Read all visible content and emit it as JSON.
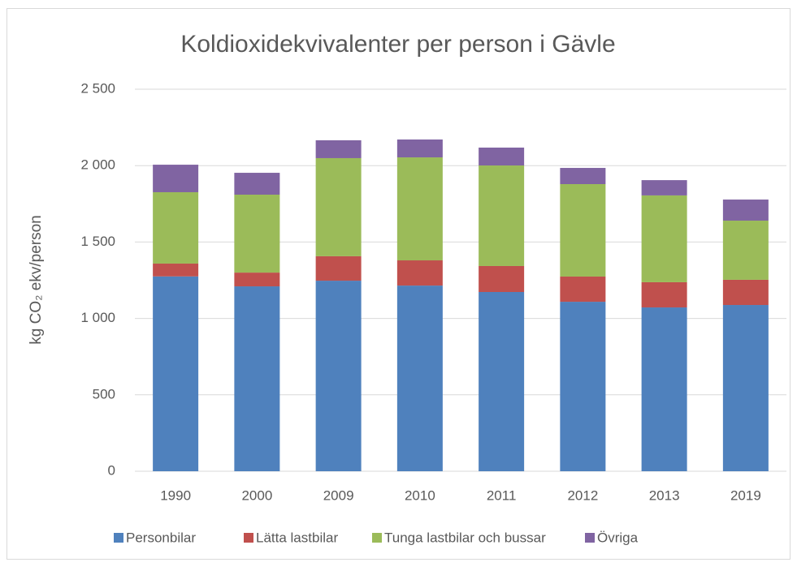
{
  "chart_data": {
    "type": "stacked_bar",
    "title": "Koldioxidekvivalenter per person i Gävle",
    "y_label": "kg CO₂ ekv/person",
    "categories": [
      "1990",
      "2000",
      "2009",
      "2010",
      "2011",
      "2012",
      "2013",
      "2019"
    ],
    "series": [
      {
        "name": "Personbilar",
        "color": "#4f81bd",
        "values": [
          1275,
          1210,
          1247,
          1215,
          1173,
          1109,
          1072,
          1088
        ]
      },
      {
        "name": "Lätta lastbilar",
        "color": "#c0504d",
        "values": [
          84,
          90,
          160,
          165,
          170,
          165,
          165,
          165
        ]
      },
      {
        "name": "Tunga lastbilar och bussar",
        "color": "#9bbb59",
        "values": [
          467,
          510,
          642,
          674,
          658,
          605,
          568,
          387
        ]
      },
      {
        "name": "Övriga",
        "color": "#8064a2",
        "values": [
          180,
          143,
          117,
          117,
          117,
          106,
          100,
          138
        ]
      }
    ],
    "ylim": [
      0,
      2500
    ],
    "yticks": [
      0,
      500,
      {
        "value": 1000,
        "label": "1 000"
      },
      {
        "value": 1500,
        "label": "1 500"
      },
      {
        "value": 2000,
        "label": "2 000"
      },
      {
        "value": 2500,
        "label": "2 500"
      }
    ],
    "grid": true,
    "legend": "bottom"
  }
}
